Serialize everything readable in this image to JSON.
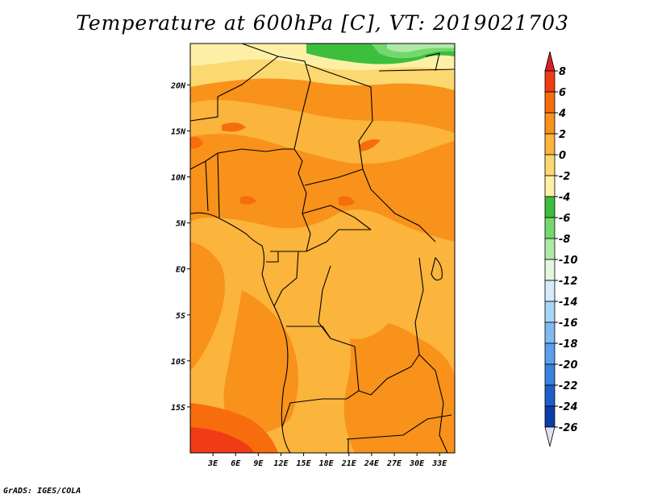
{
  "title": "Temperature at 600hPa [C], VT: 2019021703",
  "credit": "GrADS: IGES/COLA",
  "map": {
    "lat_labels": [
      "20N",
      "15N",
      "10N",
      "5N",
      "EQ",
      "5S",
      "10S",
      "15S"
    ],
    "lon_labels": [
      "3E",
      "6E",
      "9E",
      "12E",
      "15E",
      "18E",
      "21E",
      "24E",
      "27E",
      "30E",
      "33E"
    ],
    "lat_values": [
      20,
      15,
      10,
      5,
      0,
      -5,
      -10,
      -15
    ],
    "lon_values": [
      3,
      6,
      9,
      12,
      15,
      18,
      21,
      24,
      27,
      30,
      33
    ],
    "lon_range": [
      0,
      35
    ],
    "lat_range": [
      -20,
      24.5
    ]
  },
  "colorbar": {
    "labels": [
      "8",
      "6",
      "4",
      "2",
      "0",
      "-2",
      "-4",
      "-6",
      "-8",
      "-10",
      "-12",
      "-14",
      "-16",
      "-18",
      "-20",
      "-22",
      "-24",
      "-26"
    ],
    "colors": [
      "#d8202a",
      "#f03c16",
      "#f76c0c",
      "#f8921a",
      "#fbb43c",
      "#fcd870",
      "#fdf0a6",
      "#3cbf3c",
      "#73d86e",
      "#afe9a8",
      "#e2f6e0",
      "#d6ecfa",
      "#a8d4f6",
      "#7fbaf2",
      "#5aa0ec",
      "#3982e0",
      "#1e5ec8",
      "#0c3ea8",
      "#0a1a70",
      "#e0e0f4"
    ]
  }
}
